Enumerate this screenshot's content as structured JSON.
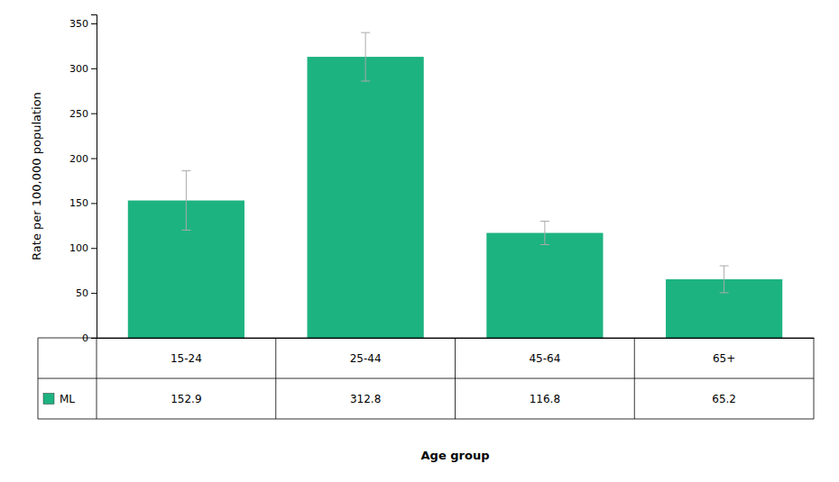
{
  "chart_data": {
    "type": "bar",
    "categories": [
      "15-24",
      "25-44",
      "45-64",
      "65+"
    ],
    "series": [
      {
        "name": "ML",
        "color": "#1DB380",
        "values": [
          152.9,
          312.8,
          116.8,
          65.2
        ],
        "errors": [
          33,
          27,
          13,
          15
        ]
      }
    ],
    "ylabel": "Rate per 100,000 population",
    "xlabel": "Age group",
    "ylim": [
      0,
      360
    ],
    "yticks": [
      0,
      50,
      100,
      150,
      200,
      250,
      300,
      350
    ],
    "data_labels": true
  }
}
